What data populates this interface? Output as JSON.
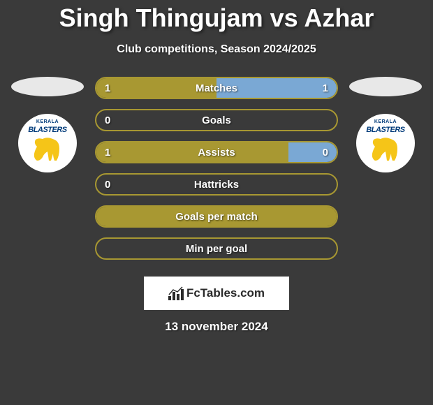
{
  "title": "Singh Thingujam vs Azhar",
  "subtitle": "Club competitions, Season 2024/2025",
  "date": "13 november 2024",
  "watermark": "FcTables.com",
  "club": {
    "top_text": "KERALA",
    "name": "BLASTERS",
    "badge_bg": "#ffffff",
    "text_color": "#003b7a",
    "elephant_color": "#f5c518"
  },
  "colors": {
    "background": "#3a3a3a",
    "bar_border": "#a89832",
    "left_fill": "#a89832",
    "right_fill": "#7aa8d4",
    "text": "#ffffff"
  },
  "stats": [
    {
      "label": "Matches",
      "left_value": "1",
      "right_value": "1",
      "left_pct": 50,
      "right_pct": 50,
      "show_values": true
    },
    {
      "label": "Goals",
      "left_value": "0",
      "right_value": "",
      "left_pct": 0,
      "right_pct": 0,
      "show_values": true
    },
    {
      "label": "Assists",
      "left_value": "1",
      "right_value": "0",
      "left_pct": 80,
      "right_pct": 20,
      "show_values": true
    },
    {
      "label": "Hattricks",
      "left_value": "0",
      "right_value": "",
      "left_pct": 0,
      "right_pct": 0,
      "show_values": true
    },
    {
      "label": "Goals per match",
      "left_value": "",
      "right_value": "",
      "left_pct": 100,
      "right_pct": 0,
      "show_values": false
    },
    {
      "label": "Min per goal",
      "left_value": "",
      "right_value": "",
      "left_pct": 0,
      "right_pct": 0,
      "show_values": false
    }
  ]
}
